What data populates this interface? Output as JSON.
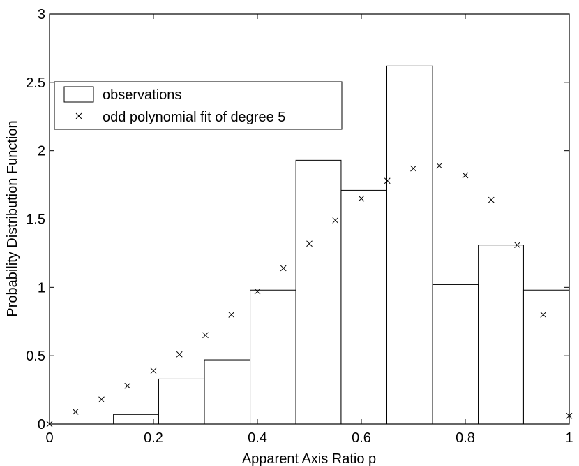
{
  "chart_data": {
    "type": "bar",
    "xlabel": "Apparent Axis Ratio p",
    "ylabel": "Probability Distribution Function",
    "xlim": [
      0,
      1
    ],
    "ylim": [
      0,
      3
    ],
    "xticks": [
      0,
      0.2,
      0.4,
      0.6,
      0.8,
      1
    ],
    "xtick_labels": [
      "0",
      "0.2",
      "0.4",
      "0.6",
      "0.8",
      "1"
    ],
    "yticks": [
      0,
      0.5,
      1,
      1.5,
      2,
      2.5,
      3
    ],
    "ytick_labels": [
      "0",
      "0.5",
      "1",
      "1.5",
      "2",
      "2.5",
      "3"
    ],
    "grid": false,
    "legend_position": "upper-left",
    "series": [
      {
        "name": "observations",
        "type": "histogram",
        "bin_edges": [
          0.123,
          0.21,
          0.298,
          0.386,
          0.474,
          0.561,
          0.649,
          0.737,
          0.825,
          0.912,
          1.0
        ],
        "values": [
          0.07,
          0.33,
          0.47,
          0.98,
          1.93,
          1.71,
          2.62,
          1.02,
          1.31,
          0.98
        ]
      },
      {
        "name": "odd polynomial fit of degree 5",
        "type": "scatter",
        "marker": "x",
        "x": [
          0,
          0.05,
          0.1,
          0.15,
          0.2,
          0.25,
          0.3,
          0.35,
          0.4,
          0.45,
          0.5,
          0.55,
          0.6,
          0.65,
          0.7,
          0.75,
          0.8,
          0.85,
          0.9,
          0.95,
          1.0
        ],
        "y": [
          0,
          0.09,
          0.18,
          0.28,
          0.39,
          0.51,
          0.65,
          0.8,
          0.97,
          1.14,
          1.32,
          1.49,
          1.65,
          1.78,
          1.87,
          1.89,
          1.82,
          1.64,
          1.31,
          0.8,
          0.06
        ]
      }
    ]
  }
}
